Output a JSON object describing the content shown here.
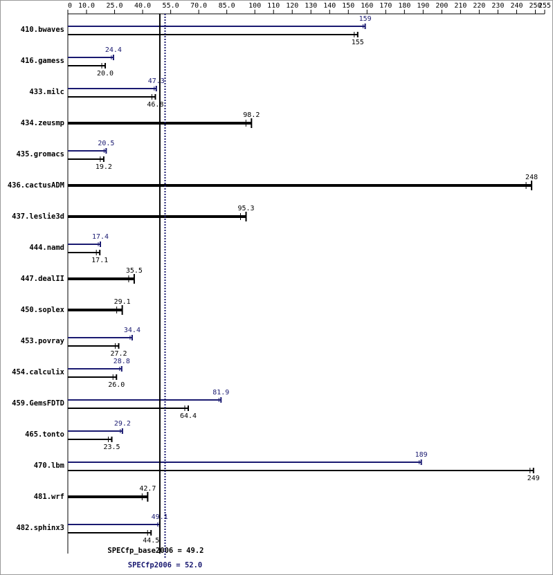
{
  "chart_data": {
    "type": "bar",
    "orientation": "horizontal",
    "categories": [
      "410.bwaves",
      "416.gamess",
      "433.milc",
      "434.zeusmp",
      "435.gromacs",
      "436.cactusADM",
      "437.leslie3d",
      "444.namd",
      "447.dealII",
      "450.soplex",
      "453.povray",
      "454.calculix",
      "459.GemsFDTD",
      "465.tonto",
      "470.lbm",
      "481.wrf",
      "482.sphinx3"
    ],
    "series": [
      {
        "color": "#191970",
        "values": [
          159,
          24.4,
          47.3,
          null,
          20.5,
          null,
          null,
          17.4,
          null,
          null,
          34.4,
          28.8,
          81.9,
          29.2,
          189,
          null,
          49.1
        ],
        "value_labels": [
          "159",
          "24.4",
          "47.3",
          null,
          "20.5",
          null,
          null,
          "17.4",
          null,
          null,
          "34.4",
          "28.8",
          "81.9",
          "29.2",
          "189",
          null,
          "49.1"
        ]
      },
      {
        "color": "#000000",
        "values": [
          155,
          20.0,
          46.8,
          98.2,
          19.2,
          248,
          95.3,
          17.1,
          35.5,
          29.1,
          27.2,
          26.0,
          64.4,
          23.5,
          249,
          42.7,
          44.5
        ],
        "value_labels": [
          "155",
          "20.0",
          "46.8",
          "98.2",
          "19.2",
          "248",
          "95.3",
          "17.1",
          "35.5",
          "29.1",
          "27.2",
          "26.0",
          "64.4",
          "23.5",
          "249",
          "42.7",
          "44.5"
        ]
      }
    ],
    "xlim": [
      0,
      255
    ],
    "xticks": [
      0,
      {
        "value": 10,
        "label": "10.0"
      },
      {
        "value": 25,
        "label": "25.0"
      },
      {
        "value": 40,
        "label": "40.0"
      },
      {
        "value": 55,
        "label": "55.0"
      },
      {
        "value": 70,
        "label": "70.0"
      },
      {
        "value": 85,
        "label": "85.0"
      },
      100,
      110,
      120,
      130,
      140,
      150,
      160,
      170,
      180,
      190,
      200,
      210,
      220,
      230,
      240,
      250,
      255
    ],
    "reference_lines": [
      {
        "label": "SPECfp_base2006 = 49.2",
        "value": 49.2,
        "color": "#000000",
        "style": "solid"
      },
      {
        "label": "SPECfp2006 = 52.0",
        "value": 52.0,
        "color": "#191970",
        "style": "dotted"
      }
    ]
  }
}
